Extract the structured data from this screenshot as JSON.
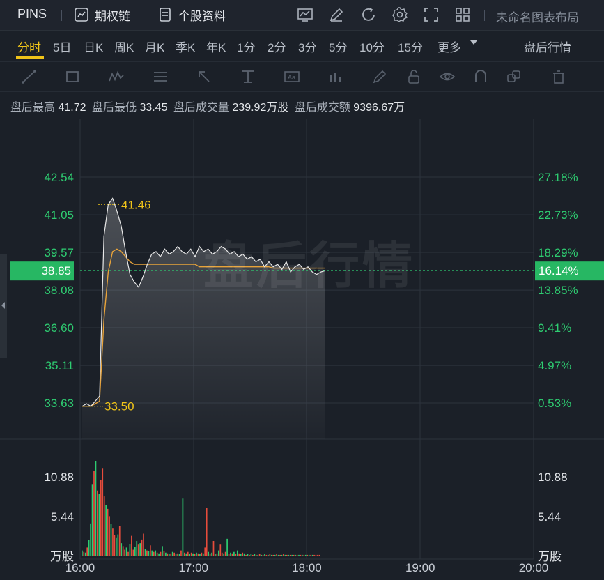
{
  "toolbar": {
    "ticker": "PINS",
    "options_chain": "期权链",
    "stock_info": "个股资料",
    "layout_name": "未命名图表布局"
  },
  "periods": [
    "分时",
    "5日",
    "日K",
    "周K",
    "月K",
    "季K",
    "年K",
    "1分",
    "2分",
    "3分",
    "5分",
    "10分",
    "15分",
    "更多"
  ],
  "active_period": "分时",
  "after_hours_label": "盘后行情",
  "stats": {
    "high_label": "盘后最高",
    "high_value": "41.72",
    "low_label": "盘后最低",
    "low_value": "33.45",
    "volume_label": "盘后成交量",
    "volume_value": "239.92万股",
    "amount_label": "盘后成交额",
    "amount_value": "9396.67万"
  },
  "watermark": "盘后行情",
  "colors": {
    "up": "#2ecc71",
    "down": "#e74c3c",
    "accent": "#f0c419",
    "avg_line": "#e8a33a",
    "price_line": "#e8e8e8"
  },
  "chart_data": {
    "type": "line",
    "price_ticks": [
      "42.54",
      "41.05",
      "39.57",
      "38.08",
      "36.60",
      "35.11",
      "33.63"
    ],
    "price_tick_values": [
      42.54,
      41.05,
      39.57,
      38.08,
      36.6,
      35.11,
      33.63
    ],
    "percent_ticks": [
      "27.18%",
      "22.73%",
      "18.29%",
      "13.85%",
      "9.41%",
      "4.97%",
      "0.53%"
    ],
    "current_price": "38.85",
    "current_percent": "16.14%",
    "high_marker": "41.46",
    "low_marker": "33.50",
    "volume_ticks": [
      "10.88",
      "5.44"
    ],
    "volume_tick_values": [
      10.88,
      5.44
    ],
    "volume_unit": "万股",
    "x_ticks": [
      "16:00",
      "17:00",
      "18:00",
      "19:00",
      "20:00"
    ],
    "ylim": [
      32.9,
      44.0
    ],
    "price_series": [
      33.5,
      33.6,
      33.5,
      33.7,
      33.9,
      40.2,
      41.46,
      41.7,
      41.2,
      40.6,
      39.6,
      38.7,
      38.4,
      38.2,
      38.6,
      39.1,
      39.5,
      39.6,
      39.4,
      39.7,
      39.5,
      39.6,
      39.8,
      39.6,
      39.5,
      39.7,
      39.4,
      39.8,
      39.6,
      39.7,
      39.5,
      39.6,
      39.8,
      39.7,
      39.5,
      39.6,
      39.4,
      39.5,
      39.3,
      39.4,
      39.2,
      39.3,
      39.0,
      39.2,
      39.0,
      39.1,
      38.9,
      39.2,
      38.8,
      39.0,
      39.1,
      38.9,
      39.0,
      38.8,
      38.7,
      38.8,
      38.85
    ],
    "avg_series": [
      33.5,
      33.5,
      33.5,
      33.6,
      33.7,
      36.9,
      38.8,
      39.6,
      39.7,
      39.6,
      39.4,
      39.2,
      39.1,
      39.1,
      39.1,
      39.1,
      39.1,
      39.1,
      39.1,
      39.1,
      39.1,
      39.1,
      39.1,
      39.1,
      39.1,
      39.1,
      39.1,
      39.0,
      39.0,
      39.0,
      39.0,
      39.0,
      39.0,
      39.0,
      39.0,
      39.0,
      39.0,
      39.0,
      39.0,
      39.0,
      39.0,
      39.0,
      39.0,
      39.0,
      38.95,
      38.95,
      38.95,
      38.95,
      38.95,
      38.95,
      38.95,
      38.95,
      38.95,
      38.95,
      38.95,
      38.95,
      38.95
    ],
    "volumes": [
      0.8,
      0.6,
      0.5,
      1.2,
      2.2,
      4.5,
      9.8,
      11.7,
      13.0,
      9.0,
      8.5,
      10.5,
      12.0,
      8.2,
      7.0,
      6.5,
      5.5,
      4.4,
      3.8,
      2.9,
      2.5,
      3.0,
      4.2,
      1.8,
      1.4,
      0.9,
      1.2,
      0.6,
      1.7,
      2.8,
      0.9,
      1.3,
      2.1,
      1.6,
      1.8,
      2.3,
      3.1,
      1.0,
      0.8,
      0.7,
      1.5,
      0.8,
      0.6,
      0.8,
      0.5,
      0.4,
      0.6,
      1.4,
      0.7,
      0.5,
      0.4,
      0.3,
      0.4,
      0.6,
      0.5,
      0.3,
      0.4,
      0.3,
      0.8,
      7.9,
      0.5,
      0.4,
      0.6,
      0.3,
      0.5,
      0.4,
      0.3,
      0.5,
      0.4,
      0.3,
      0.5,
      0.4,
      1.2,
      6.6,
      0.6,
      0.4,
      0.5,
      2.1,
      0.3,
      0.4,
      0.8,
      1.6,
      0.5,
      0.4,
      0.6,
      2.4,
      0.3,
      0.5,
      0.4,
      0.6,
      0.3,
      0.8,
      0.4,
      0.3,
      0.5,
      0.4,
      0.2,
      0.3,
      0.2,
      0.3,
      0.2,
      0.3,
      0.2,
      0.2,
      0.3,
      0.2,
      0.2,
      0.3,
      0.2,
      0.2,
      0.3,
      0.2,
      0.2,
      0.2,
      0.3,
      0.2,
      0.2,
      0.2,
      0.3,
      0.2,
      0.2,
      0.2,
      0.2,
      0.2,
      0.2,
      0.2,
      0.2,
      0.2,
      0.2,
      0.2,
      0.2,
      0.2,
      0.2,
      0.2,
      0.2,
      0.2,
      0.2,
      0.2,
      0.2,
      0.2
    ],
    "volume_colors": [
      "g",
      "r",
      "g",
      "r",
      "g",
      "g",
      "g",
      "r",
      "g",
      "r",
      "g",
      "r",
      "r",
      "r",
      "g",
      "r",
      "r",
      "g",
      "r",
      "r",
      "g",
      "g",
      "r",
      "g",
      "r",
      "r",
      "g",
      "r",
      "g",
      "r",
      "r",
      "g",
      "g",
      "r",
      "g",
      "r",
      "r",
      "g",
      "r",
      "g",
      "r",
      "g",
      "r",
      "g",
      "r",
      "g",
      "r",
      "g",
      "r",
      "g",
      "r",
      "g",
      "r",
      "g",
      "r",
      "g",
      "r",
      "g",
      "r",
      "g",
      "r",
      "g",
      "r",
      "g",
      "r",
      "g",
      "r",
      "g",
      "r",
      "g",
      "r",
      "g",
      "r",
      "r",
      "g",
      "r",
      "g",
      "r",
      "g",
      "r",
      "g",
      "r",
      "r",
      "g",
      "r",
      "g",
      "r",
      "g",
      "r",
      "g",
      "r",
      "g",
      "r",
      "g",
      "r",
      "g",
      "r",
      "g",
      "r",
      "g",
      "r",
      "g",
      "r",
      "g",
      "r",
      "g",
      "r",
      "g",
      "r",
      "g",
      "r",
      "g",
      "r",
      "g",
      "r",
      "g",
      "r",
      "g",
      "r",
      "g",
      "r",
      "g",
      "r",
      "g",
      "r",
      "g",
      "r",
      "g",
      "r",
      "g",
      "r",
      "g",
      "r",
      "g",
      "r",
      "g"
    ]
  }
}
